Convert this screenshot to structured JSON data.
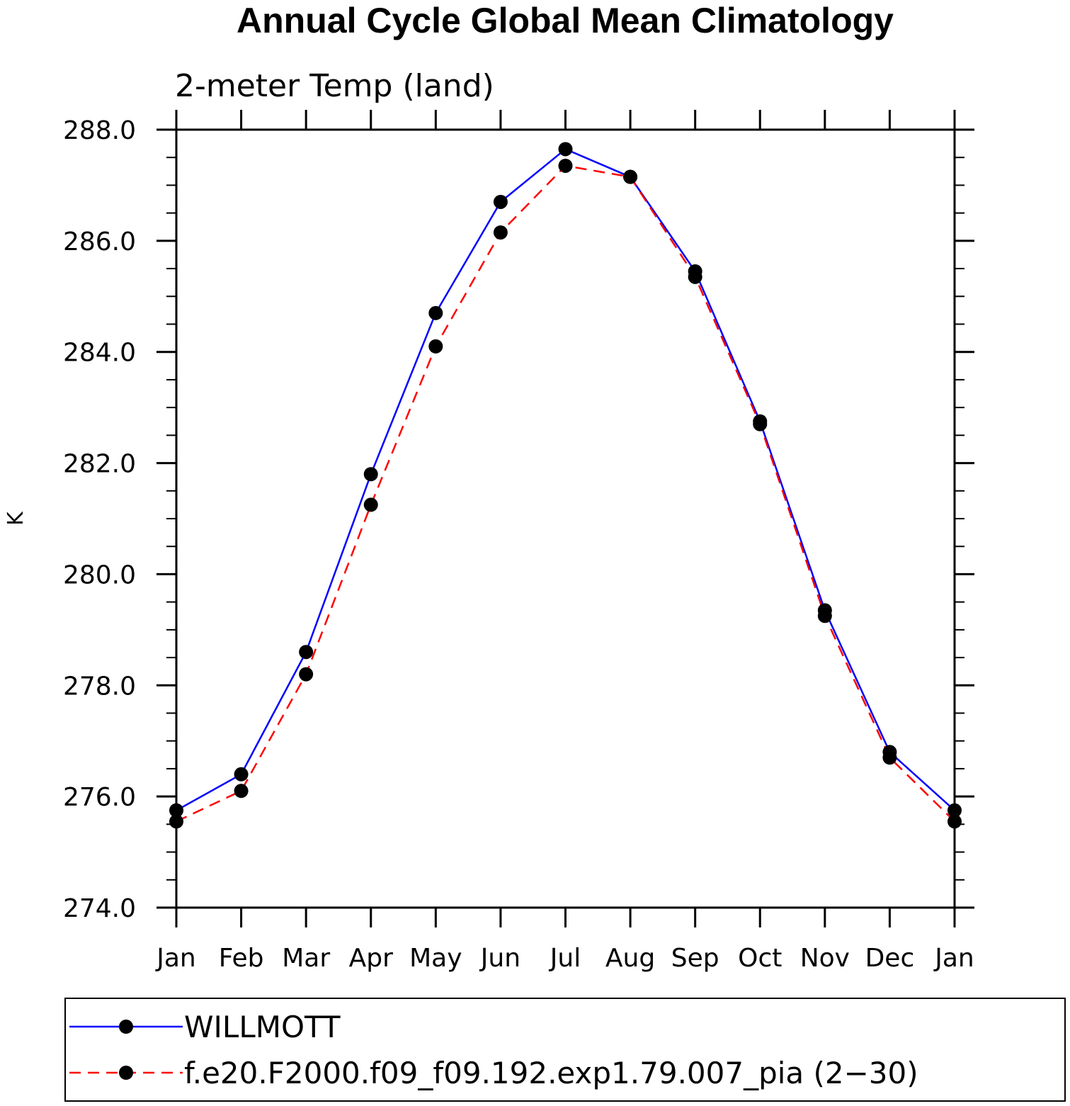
{
  "chart_data": {
    "type": "line",
    "title": "Annual Cycle Global Mean Climatology",
    "subtitle": "2-meter Temp (land)",
    "xlabel": "",
    "ylabel": "K",
    "categories": [
      "Jan",
      "Feb",
      "Mar",
      "Apr",
      "May",
      "Jun",
      "Jul",
      "Aug",
      "Sep",
      "Oct",
      "Nov",
      "Dec",
      "Jan"
    ],
    "ylim": [
      274.0,
      288.0
    ],
    "yticks": [
      "274.0",
      "276.0",
      "278.0",
      "280.0",
      "282.0",
      "284.0",
      "286.0",
      "288.0"
    ],
    "grid": false,
    "legend_position": "bottom",
    "series": [
      {
        "name": "WILLMOTT",
        "color": "#0000ff",
        "dash": "solid",
        "values": [
          275.75,
          276.4,
          278.6,
          281.8,
          284.7,
          286.7,
          287.65,
          287.15,
          285.45,
          282.75,
          279.35,
          276.8,
          275.75
        ]
      },
      {
        "name": "f.e20.F2000.f09_f09.192.exp1.79.007_pia (2−30)",
        "color": "#ff0000",
        "dash": "dashed",
        "values": [
          275.55,
          276.1,
          278.2,
          281.25,
          284.1,
          286.15,
          287.35,
          287.15,
          285.35,
          282.7,
          279.25,
          276.7,
          275.55
        ]
      }
    ]
  }
}
